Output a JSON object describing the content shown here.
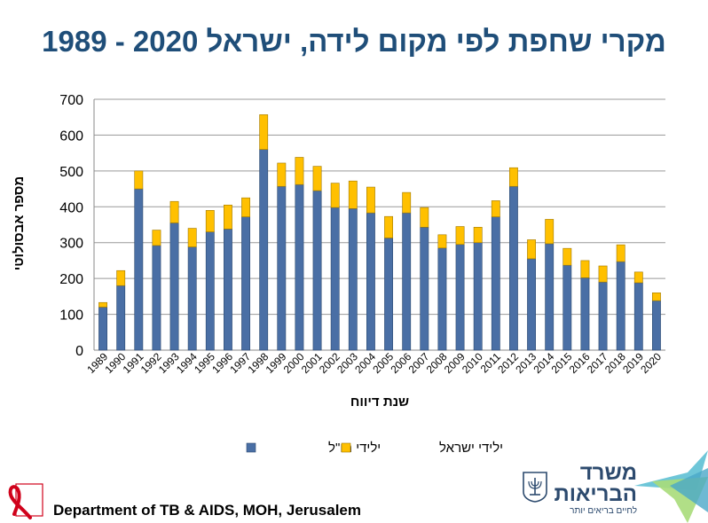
{
  "title": "מקרי שחפת לפי מקום לידה, ישראל 2020 - 1989",
  "footer": "Department of TB & AIDS, MOH, Jerusalem",
  "logo": {
    "line1": "משרד",
    "line2": "הבריאות",
    "line3": "לחיים בריאים יותר"
  },
  "colors": {
    "foreign": "#4a6fa5",
    "israel": "#ffc000",
    "title": "#1f4e79"
  },
  "chart_data": {
    "type": "bar",
    "stacked": true,
    "ylabel": "מספר אבסולוטי",
    "xlabel": "שנת דיווח",
    "ylim": [
      0,
      700
    ],
    "yticks": [
      0,
      100,
      200,
      300,
      400,
      500,
      600,
      700
    ],
    "grid": true,
    "legend_position": "bottom",
    "categories": [
      "1989",
      "1990",
      "1991",
      "1992",
      "1993",
      "1994",
      "1995",
      "1996",
      "1997",
      "1998",
      "1999",
      "2000",
      "2001",
      "2002",
      "2003",
      "2004",
      "2005",
      "2006",
      "2007",
      "2008",
      "2009",
      "2010",
      "2011",
      "2012",
      "2013",
      "2014",
      "2015",
      "2016",
      "2017",
      "2018",
      "2019",
      "2020"
    ],
    "series": [
      {
        "name": "ילידי חו\"ל",
        "color": "#4a6fa5",
        "values": [
          120,
          180,
          450,
          292,
          355,
          288,
          330,
          338,
          372,
          560,
          457,
          462,
          445,
          398,
          395,
          383,
          313,
          383,
          343,
          285,
          295,
          300,
          372,
          457,
          255,
          297,
          237,
          202,
          190,
          247,
          188,
          138
        ]
      },
      {
        "name": "ילידי ישראל",
        "color": "#ffc000",
        "values": [
          13,
          42,
          50,
          43,
          60,
          52,
          60,
          67,
          53,
          97,
          65,
          76,
          68,
          68,
          77,
          72,
          60,
          57,
          55,
          37,
          50,
          43,
          45,
          52,
          53,
          68,
          47,
          48,
          45,
          47,
          30,
          22
        ]
      }
    ]
  }
}
